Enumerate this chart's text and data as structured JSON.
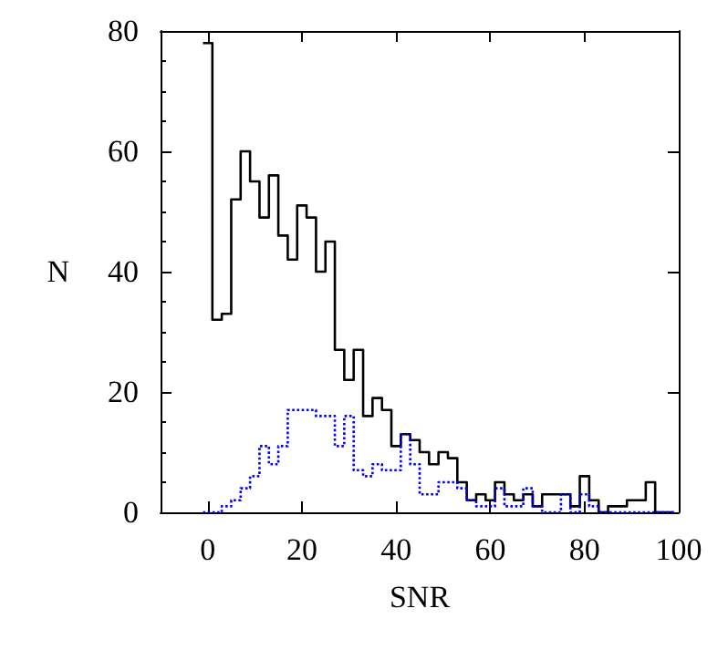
{
  "chart_data": {
    "type": "histogram",
    "xlabel": "SNR",
    "ylabel": "N",
    "bins": [
      -1,
      1,
      3,
      5,
      7,
      9,
      11,
      13,
      15,
      17,
      19,
      21,
      23,
      25,
      27,
      29,
      31,
      33,
      35,
      37,
      39,
      41,
      43,
      45,
      47,
      49,
      51,
      53,
      55,
      57,
      59,
      61,
      63,
      65,
      67,
      69,
      71,
      73,
      75,
      77,
      79,
      81,
      83,
      85,
      87,
      89,
      91,
      93,
      95,
      97,
      99
    ],
    "series": [
      {
        "color": "#000000",
        "line_style": "solid",
        "values": [
          78,
          32,
          33,
          52,
          60,
          55,
          49,
          56,
          46,
          42,
          51,
          49,
          40,
          45,
          27,
          22,
          27,
          16,
          19,
          17,
          11,
          13,
          12,
          10,
          8,
          10,
          9,
          5,
          2,
          3,
          2,
          5,
          3,
          2,
          3,
          1,
          3,
          3,
          3,
          1,
          6,
          2,
          0,
          1,
          1,
          2,
          2,
          5,
          0,
          0
        ]
      },
      {
        "color": "#0000ff",
        "line_style": "dotted",
        "values": [
          0,
          0,
          1,
          2,
          4,
          6,
          11,
          8,
          11,
          17,
          17,
          17,
          16,
          16,
          11,
          16,
          7,
          6,
          8,
          7,
          7,
          13,
          8,
          3,
          3,
          5,
          5,
          4,
          2,
          1,
          1,
          4,
          1,
          1,
          4,
          1,
          0,
          0,
          3,
          0,
          3,
          1,
          0,
          0,
          0,
          0,
          0,
          0,
          0,
          0
        ]
      }
    ],
    "xlim": [
      -10,
      100
    ],
    "xticks": [
      0,
      20,
      40,
      60,
      80,
      100
    ],
    "ylim": [
      0,
      80
    ],
    "yticks": [
      0,
      20,
      40,
      60,
      80
    ],
    "grid": false
  }
}
